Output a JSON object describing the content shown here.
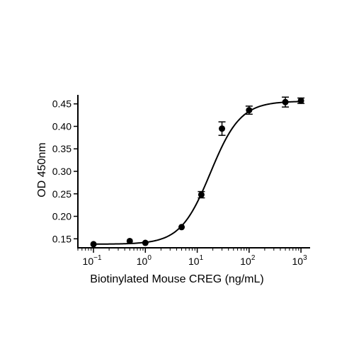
{
  "chart_data": {
    "type": "scatter",
    "xlabel": "Biotinylated Mouse CREG (ng/mL)",
    "ylabel": "OD 450nm",
    "x_scale": "log",
    "xlim": [
      0.05,
      1500
    ],
    "ylim": [
      0.13,
      0.47
    ],
    "x_ticks": [
      0.1,
      1,
      10,
      100,
      1000
    ],
    "x_tick_labels": [
      {
        "base": "10",
        "exp": "−1"
      },
      {
        "base": "10",
        "exp": "0"
      },
      {
        "base": "10",
        "exp": "1"
      },
      {
        "base": "10",
        "exp": "2"
      },
      {
        "base": "10",
        "exp": "3"
      }
    ],
    "y_ticks": [
      0.15,
      0.2,
      0.25,
      0.3,
      0.35,
      0.4,
      0.45
    ],
    "y_tick_labels": [
      "0.15",
      "0.20",
      "0.25",
      "0.30",
      "0.35",
      "0.40",
      "0.45"
    ],
    "grid": false,
    "series": [
      {
        "points": [
          {
            "x": 0.1,
            "y": 0.138,
            "err": 0.0
          },
          {
            "x": 0.5,
            "y": 0.145,
            "err": 0.0
          },
          {
            "x": 1,
            "y": 0.141,
            "err": 0.0
          },
          {
            "x": 5,
            "y": 0.176,
            "err": 0.0
          },
          {
            "x": 12,
            "y": 0.248,
            "err": 0.007
          },
          {
            "x": 30,
            "y": 0.395,
            "err": 0.015
          },
          {
            "x": 100,
            "y": 0.436,
            "err": 0.009
          },
          {
            "x": 500,
            "y": 0.454,
            "err": 0.011
          },
          {
            "x": 1000,
            "y": 0.457,
            "err": 0.006
          }
        ],
        "fit": {
          "model": "4PL",
          "bottom": 0.138,
          "top": 0.456,
          "ec50": 18,
          "hill": 1.5
        }
      }
    ]
  }
}
